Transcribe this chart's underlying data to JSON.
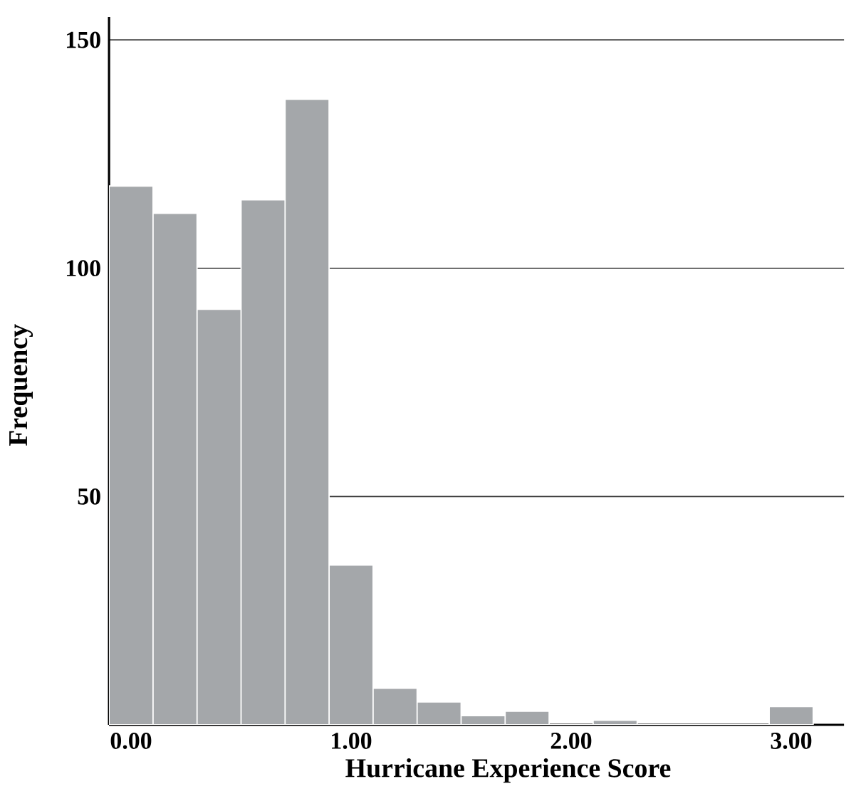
{
  "chart_data": {
    "type": "histogram",
    "xlabel": "Hurricane Experience Score",
    "ylabel": "Frequency",
    "bins": [
      -0.1,
      0.1,
      0.3,
      0.5,
      0.7,
      0.9,
      1.1,
      1.3,
      1.5,
      1.7,
      1.9,
      2.1,
      2.3,
      2.5,
      2.7,
      2.9,
      3.1
    ],
    "values": [
      118,
      112,
      91,
      115,
      137,
      35,
      8,
      5,
      2,
      3,
      0,
      1,
      0,
      0,
      0,
      4
    ],
    "color": "#a4a7aa",
    "xlim": [
      -0.1,
      3.24
    ],
    "ylim": [
      0,
      155
    ],
    "xticks": [
      {
        "value": 0,
        "label": "0.00"
      },
      {
        "value": 1,
        "label": "1.00"
      },
      {
        "value": 2,
        "label": "2.00"
      },
      {
        "value": 3,
        "label": "3.00"
      }
    ],
    "yticks": [
      50,
      100,
      150
    ],
    "grid": "y"
  }
}
